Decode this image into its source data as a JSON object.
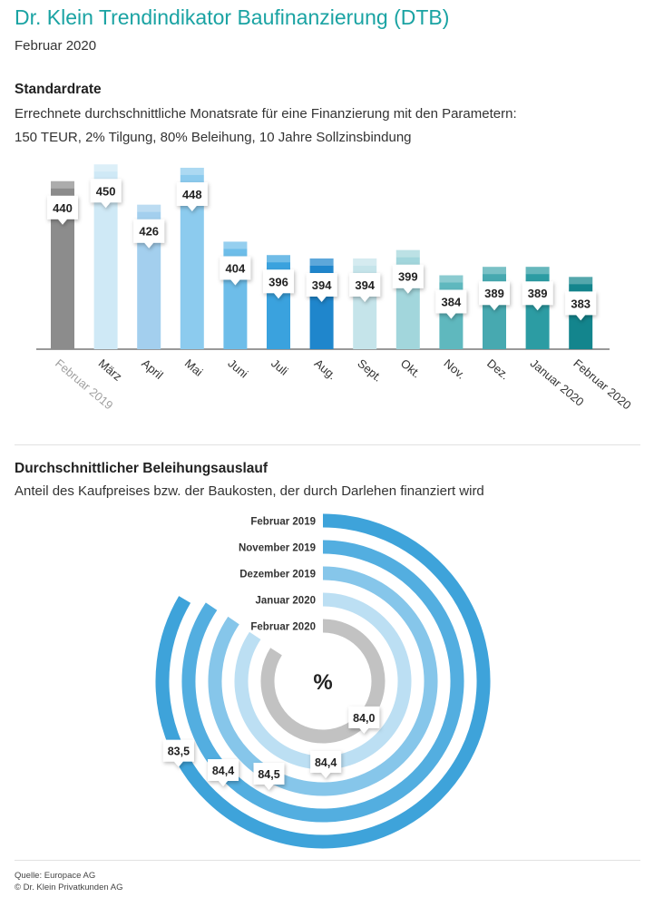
{
  "header": {
    "title": "Dr. Klein Trendindikator Baufinanzierung (DTB)",
    "subtitle": "Februar 2020"
  },
  "section1": {
    "heading": "Standardrate",
    "line1": "Errechnete durchschnittliche Monatsrate für eine Finanzierung mit den Parametern:",
    "line2": "150 TEUR, 2% Tilgung, 80% Beleihung, 10 Jahre Sollzinsbindung"
  },
  "section2": {
    "heading": "Durchschnittlicher Beleihungsauslauf",
    "line1": "Anteil des Kaufpreises bzw. der Baukosten, der durch Darlehen finanziert wird"
  },
  "footer": {
    "source": "Quelle: Europace AG",
    "copyright": "© Dr. Klein Privatkunden AG"
  },
  "chart_data": [
    {
      "type": "bar",
      "title": "Standardrate",
      "categories": [
        "Februar 2019",
        "März",
        "April",
        "Mai",
        "Juni",
        "Juli",
        "Aug.",
        "Sept.",
        "Okt.",
        "Nov.",
        "Dez.",
        "Januar 2020",
        "Februar 2020"
      ],
      "values": [
        440,
        450,
        426,
        448,
        404,
        396,
        394,
        394,
        399,
        384,
        389,
        389,
        383
      ],
      "colors": [
        "#8c8c8c",
        "#cfe9f6",
        "#a3cfee",
        "#8ccbee",
        "#6dbde9",
        "#3aa2de",
        "#1f86cc",
        "#c5e4ea",
        "#a2d6dc",
        "#5fb8be",
        "#47a9b0",
        "#2c9ca3",
        "#13858d"
      ],
      "category_colors": [
        "#a0a0a0",
        "#333333",
        "#333333",
        "#333333",
        "#333333",
        "#333333",
        "#333333",
        "#333333",
        "#333333",
        "#333333",
        "#333333",
        "#333333",
        "#333333"
      ],
      "ylim": [
        340,
        455
      ],
      "grid": false,
      "legend": "none"
    },
    {
      "type": "radial-bar",
      "title": "Durchschnittlicher Beleihungsauslauf",
      "center_label": "%",
      "series": [
        {
          "name": "Februar 2019",
          "value": 83.5,
          "label": "83,5",
          "color": "#3ea3da"
        },
        {
          "name": "November 2019",
          "value": 84.4,
          "label": "84,4",
          "color": "#53aee0"
        },
        {
          "name": "Dezember 2019",
          "value": 84.5,
          "label": "84,5",
          "color": "#86c6ea"
        },
        {
          "name": "Januar 2020",
          "value": 84.4,
          "label": "84,4",
          "color": "#bcdff3"
        },
        {
          "name": "Februar 2020",
          "value": 84.0,
          "label": "84,0",
          "color": "#c2c2c2"
        }
      ]
    }
  ]
}
